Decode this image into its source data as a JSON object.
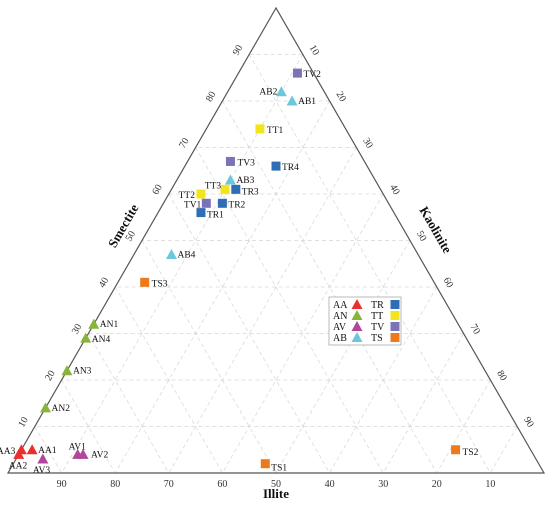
{
  "chart_data": {
    "type": "scatter",
    "subtype": "ternary",
    "axes": {
      "bottom": {
        "label": "Illite",
        "ticks": [
          "90",
          "80",
          "70",
          "60",
          "50",
          "40",
          "30",
          "20",
          "10"
        ]
      },
      "left": {
        "label": "Smectite",
        "ticks": [
          "10",
          "20",
          "30",
          "40",
          "50",
          "60",
          "70",
          "80",
          "90"
        ]
      },
      "right": {
        "label": "Kaolinite",
        "ticks": [
          "10",
          "20",
          "30",
          "40",
          "50",
          "60",
          "70",
          "80",
          "90"
        ]
      }
    },
    "grid": true,
    "legend_position": "right",
    "groups": [
      {
        "name": "AA",
        "marker": "triangle",
        "color": "#e8302f"
      },
      {
        "name": "AN",
        "marker": "triangle",
        "color": "#86b53a"
      },
      {
        "name": "AV",
        "marker": "triangle",
        "color": "#b0479a"
      },
      {
        "name": "AB",
        "marker": "triangle",
        "color": "#6cc7dc"
      },
      {
        "name": "TR",
        "marker": "square",
        "color": "#2f6db5"
      },
      {
        "name": "TT",
        "marker": "square",
        "color": "#f2e51b"
      },
      {
        "name": "TV",
        "marker": "square",
        "color": "#7a73b8"
      },
      {
        "name": "TS",
        "marker": "square",
        "color": "#ec7a1c"
      }
    ],
    "points": [
      {
        "label": "TV2",
        "group": "TV",
        "smectite": 86,
        "kaolinite": 11,
        "illite": 3
      },
      {
        "label": "AB2",
        "group": "AB",
        "smectite": 82,
        "kaolinite": 10,
        "illite": 8
      },
      {
        "label": "AB1",
        "group": "AB",
        "smectite": 80,
        "kaolinite": 13,
        "illite": 7
      },
      {
        "label": "TT1",
        "group": "TT",
        "smectite": 74,
        "kaolinite": 10,
        "illite": 16
      },
      {
        "label": "TV3",
        "group": "TV",
        "smectite": 67,
        "kaolinite": 8,
        "illite": 25
      },
      {
        "label": "TR4",
        "group": "TR",
        "smectite": 66,
        "kaolinite": 17,
        "illite": 17
      },
      {
        "label": "AB3",
        "group": "AB",
        "smectite": 63,
        "kaolinite": 10,
        "illite": 27
      },
      {
        "label": "TT3",
        "group": "TT",
        "smectite": 61,
        "kaolinite": 10,
        "illite": 29
      },
      {
        "label": "TR3",
        "group": "TR",
        "smectite": 61,
        "kaolinite": 12,
        "illite": 27
      },
      {
        "label": "TT2",
        "group": "TT",
        "smectite": 60,
        "kaolinite": 6,
        "illite": 34
      },
      {
        "label": "TV1",
        "group": "TV",
        "smectite": 58,
        "kaolinite": 8,
        "illite": 34
      },
      {
        "label": "TR2",
        "group": "TR",
        "smectite": 58,
        "kaolinite": 11,
        "illite": 31
      },
      {
        "label": "TR1",
        "group": "TR",
        "smectite": 56,
        "kaolinite": 8,
        "illite": 36
      },
      {
        "label": "AB4",
        "group": "AB",
        "smectite": 47,
        "kaolinite": 7,
        "illite": 46
      },
      {
        "label": "TS3",
        "group": "TS",
        "smectite": 41,
        "kaolinite": 5,
        "illite": 54
      },
      {
        "label": "AN1",
        "group": "AN",
        "smectite": 32,
        "kaolinite": 0,
        "illite": 68
      },
      {
        "label": "AN4",
        "group": "AN",
        "smectite": 29,
        "kaolinite": 0,
        "illite": 71
      },
      {
        "label": "AN3",
        "group": "AN",
        "smectite": 22,
        "kaolinite": 0,
        "illite": 78
      },
      {
        "label": "AN2",
        "group": "AN",
        "smectite": 14,
        "kaolinite": 0,
        "illite": 86
      },
      {
        "label": "AA3",
        "group": "AA",
        "smectite": 5,
        "kaolinite": 0,
        "illite": 95
      },
      {
        "label": "AA2",
        "group": "AA",
        "smectite": 4,
        "kaolinite": 0,
        "illite": 96
      },
      {
        "label": "AA1",
        "group": "AA",
        "smectite": 5,
        "kaolinite": 2,
        "illite": 93
      },
      {
        "label": "AV3",
        "group": "AV",
        "smectite": 3,
        "kaolinite": 5,
        "illite": 92
      },
      {
        "label": "AV1",
        "group": "AV",
        "smectite": 4,
        "kaolinite": 11,
        "illite": 85
      },
      {
        "label": "AV2",
        "group": "AV",
        "smectite": 4,
        "kaolinite": 12,
        "illite": 84
      },
      {
        "label": "TS1",
        "group": "TS",
        "smectite": 2,
        "kaolinite": 47,
        "illite": 51
      },
      {
        "label": "TS2",
        "group": "TS",
        "smectite": 5,
        "kaolinite": 81,
        "illite": 14
      }
    ]
  }
}
